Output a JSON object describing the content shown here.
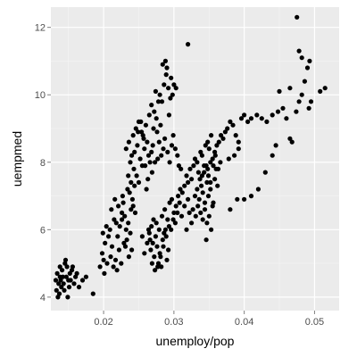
{
  "colors": {
    "panel_background": "#ebebeb",
    "grid_major": "#ffffff",
    "grid_minor": "#f5f5f5",
    "point": "#000000"
  },
  "chart_data": {
    "type": "scatter",
    "title": "",
    "xlabel": "unemploy/pop",
    "ylabel": "uempmed",
    "xlim": [
      0.0125,
      0.0535
    ],
    "ylim": [
      3.6,
      12.6
    ],
    "x_ticks": [
      0.02,
      0.03,
      0.04,
      0.05
    ],
    "x_tick_labels": [
      "0.02",
      "0.03",
      "0.04",
      "0.05"
    ],
    "y_ticks": [
      4,
      6,
      8,
      10,
      12
    ],
    "y_tick_labels": [
      "4",
      "6",
      "8",
      "10",
      "12"
    ],
    "grid": true,
    "legend": "none",
    "points": [
      [
        0.0132,
        4.5
      ],
      [
        0.0134,
        4.7
      ],
      [
        0.0136,
        4.4
      ],
      [
        0.0138,
        4.6
      ],
      [
        0.0133,
        4.2
      ],
      [
        0.0135,
        4.0
      ],
      [
        0.014,
        4.3
      ],
      [
        0.0142,
        4.6
      ],
      [
        0.0138,
        4.9
      ],
      [
        0.0141,
        4.8
      ],
      [
        0.0145,
        5.0
      ],
      [
        0.0143,
        4.4
      ],
      [
        0.0147,
        4.6
      ],
      [
        0.015,
        4.5
      ],
      [
        0.0152,
        4.7
      ],
      [
        0.0148,
        4.9
      ],
      [
        0.0155,
        4.8
      ],
      [
        0.016,
        4.6
      ],
      [
        0.0158,
        4.4
      ],
      [
        0.0165,
        4.3
      ],
      [
        0.0137,
        4.1
      ],
      [
        0.0144,
        4.2
      ],
      [
        0.0151,
        4.3
      ],
      [
        0.0146,
        5.1
      ],
      [
        0.0153,
        4.5
      ],
      [
        0.0149,
        4.0
      ],
      [
        0.0139,
        4.5
      ],
      [
        0.0156,
        4.9
      ],
      [
        0.0162,
        4.7
      ],
      [
        0.017,
        4.5
      ],
      [
        0.0175,
        4.6
      ],
      [
        0.0185,
        4.1
      ],
      [
        0.0195,
        4.9
      ],
      [
        0.02,
        5.1
      ],
      [
        0.0205,
        5.0
      ],
      [
        0.0198,
        5.3
      ],
      [
        0.021,
        5.2
      ],
      [
        0.0202,
        5.6
      ],
      [
        0.0207,
        5.8
      ],
      [
        0.0212,
        5.5
      ],
      [
        0.0199,
        5.9
      ],
      [
        0.0204,
        6.1
      ],
      [
        0.0209,
        6.0
      ],
      [
        0.0215,
        6.3
      ],
      [
        0.0211,
        6.6
      ],
      [
        0.0218,
        6.2
      ],
      [
        0.022,
        5.8
      ],
      [
        0.0222,
        5.4
      ],
      [
        0.0217,
        5.1
      ],
      [
        0.0225,
        5.0
      ],
      [
        0.0214,
        4.9
      ],
      [
        0.0219,
        4.8
      ],
      [
        0.0201,
        4.7
      ],
      [
        0.0223,
        6.1
      ],
      [
        0.0216,
        6.9
      ],
      [
        0.0221,
        6.7
      ],
      [
        0.0226,
        6.5
      ],
      [
        0.023,
        6.4
      ],
      [
        0.0228,
        6.8
      ],
      [
        0.0232,
        6.0
      ],
      [
        0.0235,
        6.2
      ],
      [
        0.0229,
        5.6
      ],
      [
        0.0233,
        5.7
      ],
      [
        0.0238,
        5.9
      ],
      [
        0.024,
        5.4
      ],
      [
        0.0236,
        5.2
      ],
      [
        0.0231,
        5.5
      ],
      [
        0.0226,
        6.3
      ],
      [
        0.0227,
        7.0
      ],
      [
        0.0234,
        7.2
      ],
      [
        0.0237,
        7.1
      ],
      [
        0.0239,
        6.6
      ],
      [
        0.0242,
        6.7
      ],
      [
        0.0245,
        6.5
      ],
      [
        0.0241,
        6.9
      ],
      [
        0.0244,
        7.3
      ],
      [
        0.0239,
        7.4
      ],
      [
        0.0247,
        7.6
      ],
      [
        0.0243,
        7.8
      ],
      [
        0.025,
        7.4
      ],
      [
        0.0235,
        7.6
      ],
      [
        0.0238,
        8.0
      ],
      [
        0.0232,
        8.4
      ],
      [
        0.0236,
        8.6
      ],
      [
        0.024,
        8.2
      ],
      [
        0.0244,
        8.3
      ],
      [
        0.0248,
        8.5
      ],
      [
        0.0252,
        8.1
      ],
      [
        0.0255,
        7.9
      ],
      [
        0.0258,
        8.4
      ],
      [
        0.0242,
        8.8
      ],
      [
        0.0246,
        9.0
      ],
      [
        0.025,
        9.2
      ],
      [
        0.0254,
        8.9
      ],
      [
        0.0257,
        8.7
      ],
      [
        0.026,
        9.1
      ],
      [
        0.0262,
        8.6
      ],
      [
        0.0264,
        8.2
      ],
      [
        0.0266,
        8.0
      ],
      [
        0.0268,
        8.3
      ],
      [
        0.027,
        8.5
      ],
      [
        0.0265,
        9.4
      ],
      [
        0.0268,
        9.7
      ],
      [
        0.0272,
        9.5
      ],
      [
        0.0275,
        9.3
      ],
      [
        0.0278,
        9.8
      ],
      [
        0.0274,
        10.1
      ],
      [
        0.028,
        10.0
      ],
      [
        0.0283,
        9.8
      ],
      [
        0.0286,
        10.3
      ],
      [
        0.0289,
        10.6
      ],
      [
        0.0284,
        10.9
      ],
      [
        0.029,
        10.8
      ],
      [
        0.0292,
        10.2
      ],
      [
        0.0295,
        9.9
      ],
      [
        0.0298,
        10.0
      ],
      [
        0.03,
        10.3
      ],
      [
        0.0303,
        10.2
      ],
      [
        0.0296,
        10.5
      ],
      [
        0.0288,
        11.0
      ],
      [
        0.032,
        11.5
      ],
      [
        0.0276,
        8.9
      ],
      [
        0.0279,
        8.6
      ],
      [
        0.0282,
        8.2
      ],
      [
        0.0285,
        8.4
      ],
      [
        0.0287,
        8.7
      ],
      [
        0.0291,
        8.3
      ],
      [
        0.0294,
        8.0
      ],
      [
        0.0297,
        8.5
      ],
      [
        0.0299,
        8.8
      ],
      [
        0.0302,
        8.4
      ],
      [
        0.0305,
        8.2
      ],
      [
        0.0307,
        7.9
      ],
      [
        0.031,
        7.8
      ],
      [
        0.0273,
        8.0
      ],
      [
        0.0269,
        7.7
      ],
      [
        0.0263,
        7.5
      ],
      [
        0.0261,
        7.2
      ],
      [
        0.0259,
        7.9
      ],
      [
        0.0256,
        8.8
      ],
      [
        0.0253,
        9.2
      ],
      [
        0.0249,
        8.9
      ],
      [
        0.0281,
        9.1
      ],
      [
        0.0293,
        9.4
      ],
      [
        0.0271,
        9.0
      ],
      [
        0.0277,
        8.1
      ],
      [
        0.0267,
        5.4
      ],
      [
        0.027,
        5.6
      ],
      [
        0.0272,
        5.2
      ],
      [
        0.0274,
        5.8
      ],
      [
        0.0276,
        5.5
      ],
      [
        0.0278,
        5.0
      ],
      [
        0.028,
        5.3
      ],
      [
        0.0282,
        4.9
      ],
      [
        0.0284,
        5.7
      ],
      [
        0.0286,
        5.9
      ],
      [
        0.0288,
        6.0
      ],
      [
        0.029,
        5.1
      ],
      [
        0.0292,
        5.4
      ],
      [
        0.0265,
        5.9
      ],
      [
        0.0268,
        6.1
      ],
      [
        0.0271,
        6.3
      ],
      [
        0.0275,
        6.2
      ],
      [
        0.0279,
        6.0
      ],
      [
        0.0283,
        6.4
      ],
      [
        0.0287,
        6.6
      ],
      [
        0.0291,
        6.3
      ],
      [
        0.0294,
        6.8
      ],
      [
        0.0297,
        6.9
      ],
      [
        0.03,
        6.5
      ],
      [
        0.0303,
        6.7
      ],
      [
        0.0306,
        7.0
      ],
      [
        0.0309,
        7.2
      ],
      [
        0.0312,
        7.1
      ],
      [
        0.0262,
        5.6
      ],
      [
        0.0258,
        5.3
      ],
      [
        0.0255,
        5.8
      ],
      [
        0.0273,
        4.8
      ],
      [
        0.0277,
        4.9
      ],
      [
        0.0281,
        5.2
      ],
      [
        0.0285,
        5.5
      ],
      [
        0.0289,
        5.8
      ],
      [
        0.0293,
        6.1
      ],
      [
        0.0296,
        6.0
      ],
      [
        0.0299,
        6.3
      ],
      [
        0.0302,
        6.2
      ],
      [
        0.0305,
        6.5
      ],
      [
        0.0308,
        6.8
      ],
      [
        0.0311,
        6.4
      ],
      [
        0.0264,
        6.0
      ],
      [
        0.0269,
        5.0
      ],
      [
        0.0266,
        5.7
      ],
      [
        0.0315,
        7.3
      ],
      [
        0.0318,
        7.6
      ],
      [
        0.032,
        7.4
      ],
      [
        0.0323,
        7.8
      ],
      [
        0.0325,
        7.5
      ],
      [
        0.0328,
        7.9
      ],
      [
        0.033,
        8.1
      ],
      [
        0.0333,
        8.0
      ],
      [
        0.0335,
        7.7
      ],
      [
        0.0338,
        8.3
      ],
      [
        0.034,
        8.2
      ],
      [
        0.0343,
        7.9
      ],
      [
        0.0345,
        8.5
      ],
      [
        0.0348,
        8.6
      ],
      [
        0.035,
        8.4
      ],
      [
        0.0353,
        8.8
      ],
      [
        0.033,
        7.0
      ],
      [
        0.0333,
        7.2
      ],
      [
        0.0336,
        6.9
      ],
      [
        0.0339,
        7.3
      ],
      [
        0.0341,
        7.1
      ],
      [
        0.0344,
        6.8
      ],
      [
        0.0347,
        7.4
      ],
      [
        0.0349,
        7.0
      ],
      [
        0.0352,
        7.2
      ],
      [
        0.0355,
        6.7
      ],
      [
        0.0358,
        7.5
      ],
      [
        0.036,
        7.8
      ],
      [
        0.0362,
        7.3
      ],
      [
        0.0338,
        6.5
      ],
      [
        0.0341,
        6.3
      ],
      [
        0.0344,
        6.6
      ],
      [
        0.0347,
        6.2
      ],
      [
        0.035,
        6.4
      ],
      [
        0.0353,
        6.0
      ],
      [
        0.0356,
        6.8
      ],
      [
        0.0346,
        5.7
      ],
      [
        0.0325,
        6.2
      ],
      [
        0.0322,
        6.5
      ],
      [
        0.0318,
        6.0
      ],
      [
        0.0315,
        6.7
      ],
      [
        0.032,
        6.9
      ],
      [
        0.0327,
        6.6
      ],
      [
        0.0331,
        6.4
      ],
      [
        0.0334,
        6.7
      ],
      [
        0.0337,
        7.5
      ],
      [
        0.034,
        7.6
      ],
      [
        0.0343,
        7.7
      ],
      [
        0.0346,
        7.9
      ],
      [
        0.0349,
        7.6
      ],
      [
        0.0352,
        8.0
      ],
      [
        0.0355,
        8.1
      ],
      [
        0.0358,
        8.3
      ],
      [
        0.0361,
        8.5
      ],
      [
        0.0364,
        8.6
      ],
      [
        0.0367,
        8.8
      ],
      [
        0.037,
        8.7
      ],
      [
        0.0373,
        8.9
      ],
      [
        0.0376,
        9.0
      ],
      [
        0.038,
        9.2
      ],
      [
        0.0384,
        9.1
      ],
      [
        0.0388,
        8.8
      ],
      [
        0.0392,
        8.6
      ],
      [
        0.0396,
        9.3
      ],
      [
        0.04,
        9.4
      ],
      [
        0.0405,
        9.2
      ],
      [
        0.041,
        9.3
      ],
      [
        0.0418,
        9.4
      ],
      [
        0.0425,
        9.3
      ],
      [
        0.0432,
        9.2
      ],
      [
        0.044,
        9.4
      ],
      [
        0.0448,
        9.5
      ],
      [
        0.0455,
        9.6
      ],
      [
        0.046,
        9.3
      ],
      [
        0.0465,
        8.7
      ],
      [
        0.0468,
        8.6
      ],
      [
        0.0474,
        9.5
      ],
      [
        0.0478,
        9.8
      ],
      [
        0.0482,
        10.0
      ],
      [
        0.0486,
        10.4
      ],
      [
        0.049,
        10.8
      ],
      [
        0.0493,
        11.0
      ],
      [
        0.0478,
        11.3
      ],
      [
        0.0482,
        11.1
      ],
      [
        0.0475,
        12.3
      ],
      [
        0.0465,
        10.2
      ],
      [
        0.045,
        10.1
      ],
      [
        0.044,
        8.2
      ],
      [
        0.0445,
        8.5
      ],
      [
        0.043,
        7.7
      ],
      [
        0.042,
        7.2
      ],
      [
        0.041,
        7.0
      ],
      [
        0.04,
        6.9
      ],
      [
        0.039,
        6.9
      ],
      [
        0.038,
        6.6
      ],
      [
        0.0392,
        8.4
      ],
      [
        0.0386,
        8.2
      ],
      [
        0.0508,
        10.1
      ],
      [
        0.0515,
        10.2
      ],
      [
        0.0492,
        9.6
      ],
      [
        0.0495,
        9.8
      ],
      [
        0.0378,
        8.1
      ],
      [
        0.0366,
        8.0
      ],
      [
        0.0356,
        7.9
      ],
      [
        0.0359,
        8.2
      ],
      [
        0.0363,
        7.8
      ],
      [
        0.0352,
        7.4
      ],
      [
        0.0348,
        7.8
      ]
    ]
  }
}
